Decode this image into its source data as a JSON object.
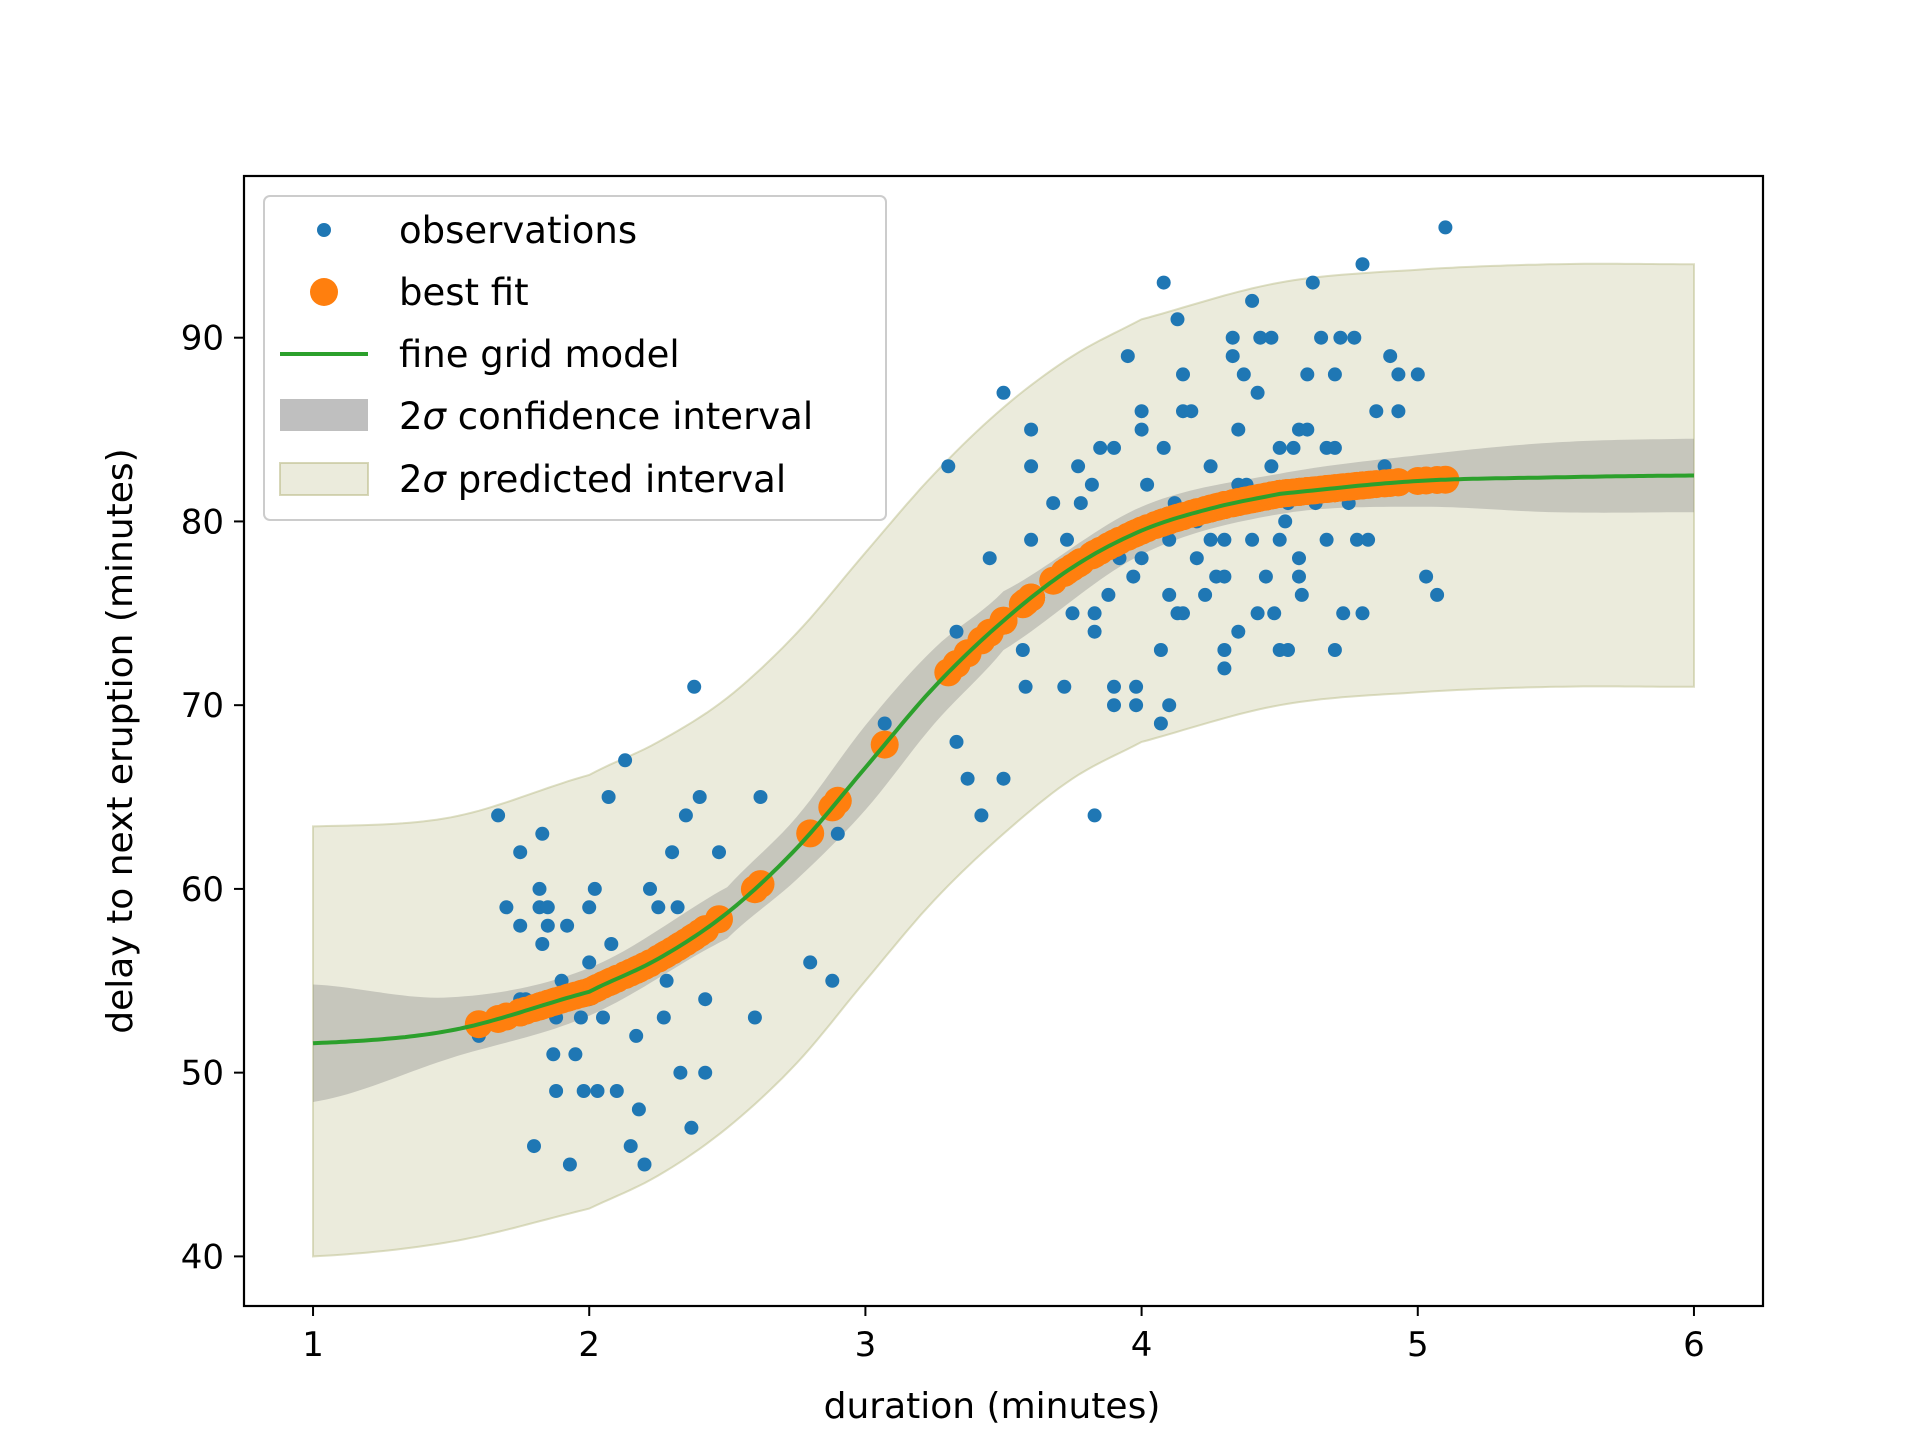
{
  "chart_data": {
    "type": "scatter",
    "title": "",
    "xlabel": "duration (minutes)",
    "ylabel": "delay to next eruption (minutes)",
    "xlim": [
      0.75,
      6.25
    ],
    "ylim": [
      37.3,
      98.8
    ],
    "xticks": [
      1,
      2,
      3,
      4,
      5,
      6
    ],
    "xtick_labels": [
      "1",
      "2",
      "3",
      "4",
      "5",
      "6"
    ],
    "yticks": [
      40,
      50,
      60,
      70,
      80,
      90
    ],
    "ytick_labels": [
      "40",
      "50",
      "60",
      "70",
      "80",
      "90"
    ],
    "grid": false,
    "legend_position": "upper-left",
    "colors": {
      "observations": "#1f77b4",
      "best_fit": "#ff7f0e",
      "fine_grid_model": "#2ca02c",
      "confidence_fill": "#808080",
      "predicted_fill": "#bcbd8a"
    },
    "legend": {
      "observations": "observations",
      "best_fit": "best fit",
      "fine_grid_model": "fine grid model",
      "confidence_prefix": "2",
      "confidence_sigma": "σ",
      "confidence_suffix": " confidence interval",
      "predicted_prefix": "2",
      "predicted_sigma": "σ",
      "predicted_suffix": " predicted interval"
    },
    "model": {
      "form": "logistic",
      "x": [
        1.0,
        1.5,
        2.0,
        2.25,
        2.5,
        2.75,
        3.0,
        3.25,
        3.5,
        3.75,
        4.0,
        4.25,
        4.5,
        5.0,
        5.5,
        6.0
      ],
      "y": [
        51.6,
        52.3,
        54.4,
        56.2,
        58.7,
        62.2,
        66.6,
        71.0,
        74.6,
        77.5,
        79.5,
        80.7,
        81.5,
        82.2,
        82.4,
        82.5
      ]
    },
    "confidence_interval": {
      "x": [
        1.0,
        1.5,
        2.0,
        2.5,
        2.75,
        3.0,
        3.25,
        3.5,
        4.0,
        4.5,
        5.0,
        5.5,
        6.0
      ],
      "lower": [
        48.4,
        50.8,
        53.1,
        57.3,
        60.5,
        64.3,
        69.0,
        73.0,
        78.2,
        80.4,
        80.8,
        80.5,
        80.5
      ],
      "upper": [
        54.8,
        54.1,
        55.7,
        60.1,
        63.9,
        68.9,
        73.1,
        76.2,
        80.8,
        82.6,
        83.6,
        84.3,
        84.5
      ]
    },
    "predicted_interval": {
      "x": [
        1.0,
        1.5,
        2.0,
        2.25,
        2.5,
        2.75,
        3.0,
        3.25,
        3.5,
        3.75,
        4.0,
        4.5,
        5.0,
        5.5,
        6.0
      ],
      "lower": [
        40.0,
        40.8,
        42.6,
        44.4,
        47.0,
        50.5,
        55.0,
        59.4,
        63.0,
        66.0,
        68.0,
        70.0,
        70.7,
        71.0,
        71.0
      ],
      "upper": [
        63.4,
        63.9,
        66.2,
        68.0,
        70.4,
        73.9,
        78.3,
        82.6,
        86.2,
        89.0,
        91.0,
        93.0,
        93.7,
        94.0,
        94.0
      ]
    },
    "observations": [
      [
        1.6,
        52
      ],
      [
        1.67,
        64
      ],
      [
        1.7,
        59
      ],
      [
        1.75,
        62
      ],
      [
        1.75,
        58
      ],
      [
        1.75,
        54
      ],
      [
        1.77,
        54
      ],
      [
        1.8,
        46
      ],
      [
        1.82,
        60
      ],
      [
        1.82,
        59
      ],
      [
        1.83,
        63
      ],
      [
        1.83,
        57
      ],
      [
        1.85,
        59
      ],
      [
        1.85,
        58
      ],
      [
        1.87,
        51
      ],
      [
        1.88,
        53
      ],
      [
        1.88,
        49
      ],
      [
        1.9,
        55
      ],
      [
        1.92,
        58
      ],
      [
        1.93,
        45
      ],
      [
        1.95,
        51
      ],
      [
        1.97,
        53
      ],
      [
        1.98,
        49
      ],
      [
        2.0,
        56
      ],
      [
        2.0,
        59
      ],
      [
        2.0,
        54
      ],
      [
        2.02,
        60
      ],
      [
        2.03,
        49
      ],
      [
        2.05,
        53
      ],
      [
        2.07,
        65
      ],
      [
        2.08,
        57
      ],
      [
        2.1,
        49
      ],
      [
        2.13,
        67
      ],
      [
        2.15,
        46
      ],
      [
        2.17,
        52
      ],
      [
        2.18,
        48
      ],
      [
        2.2,
        45
      ],
      [
        2.22,
        60
      ],
      [
        2.25,
        59
      ],
      [
        2.27,
        53
      ],
      [
        2.28,
        55
      ],
      [
        2.3,
        62
      ],
      [
        2.32,
        59
      ],
      [
        2.33,
        50
      ],
      [
        2.35,
        64
      ],
      [
        2.37,
        47
      ],
      [
        2.38,
        71
      ],
      [
        2.4,
        65
      ],
      [
        2.42,
        54
      ],
      [
        2.42,
        50
      ],
      [
        2.47,
        62
      ],
      [
        2.6,
        53
      ],
      [
        2.62,
        65
      ],
      [
        2.8,
        56
      ],
      [
        2.88,
        55
      ],
      [
        2.9,
        63
      ],
      [
        3.07,
        69
      ],
      [
        3.3,
        83
      ],
      [
        3.33,
        74
      ],
      [
        3.33,
        68
      ],
      [
        3.37,
        66
      ],
      [
        3.42,
        64
      ],
      [
        3.45,
        78
      ],
      [
        3.5,
        87
      ],
      [
        3.5,
        66
      ],
      [
        3.57,
        73
      ],
      [
        3.58,
        71
      ],
      [
        3.6,
        85
      ],
      [
        3.6,
        83
      ],
      [
        3.6,
        79
      ],
      [
        3.68,
        81
      ],
      [
        3.72,
        71
      ],
      [
        3.73,
        79
      ],
      [
        3.75,
        75
      ],
      [
        3.77,
        83
      ],
      [
        3.78,
        81
      ],
      [
        3.82,
        82
      ],
      [
        3.83,
        75
      ],
      [
        3.83,
        74
      ],
      [
        3.83,
        64
      ],
      [
        3.85,
        84
      ],
      [
        3.88,
        76
      ],
      [
        3.9,
        84
      ],
      [
        3.9,
        71
      ],
      [
        3.9,
        70
      ],
      [
        3.92,
        78
      ],
      [
        3.95,
        89
      ],
      [
        3.97,
        77
      ],
      [
        3.98,
        71
      ],
      [
        3.98,
        70
      ],
      [
        4.0,
        86
      ],
      [
        4.0,
        85
      ],
      [
        4.0,
        78
      ],
      [
        4.02,
        82
      ],
      [
        4.05,
        80
      ],
      [
        4.07,
        73
      ],
      [
        4.07,
        69
      ],
      [
        4.08,
        93
      ],
      [
        4.08,
        84
      ],
      [
        4.1,
        79
      ],
      [
        4.1,
        76
      ],
      [
        4.1,
        70
      ],
      [
        4.12,
        81
      ],
      [
        4.13,
        91
      ],
      [
        4.13,
        75
      ],
      [
        4.15,
        88
      ],
      [
        4.15,
        86
      ],
      [
        4.15,
        75
      ],
      [
        4.18,
        86
      ],
      [
        4.2,
        80
      ],
      [
        4.2,
        78
      ],
      [
        4.23,
        76
      ],
      [
        4.25,
        83
      ],
      [
        4.25,
        79
      ],
      [
        4.27,
        77
      ],
      [
        4.28,
        81
      ],
      [
        4.3,
        79
      ],
      [
        4.3,
        77
      ],
      [
        4.3,
        73
      ],
      [
        4.3,
        72
      ],
      [
        4.33,
        90
      ],
      [
        4.33,
        89
      ],
      [
        4.35,
        85
      ],
      [
        4.35,
        82
      ],
      [
        4.35,
        74
      ],
      [
        4.37,
        88
      ],
      [
        4.38,
        82
      ],
      [
        4.4,
        92
      ],
      [
        4.4,
        79
      ],
      [
        4.42,
        87
      ],
      [
        4.42,
        75
      ],
      [
        4.43,
        90
      ],
      [
        4.45,
        81
      ],
      [
        4.45,
        77
      ],
      [
        4.47,
        90
      ],
      [
        4.47,
        83
      ],
      [
        4.48,
        75
      ],
      [
        4.5,
        84
      ],
      [
        4.5,
        79
      ],
      [
        4.5,
        73
      ],
      [
        4.52,
        80
      ],
      [
        4.53,
        81
      ],
      [
        4.53,
        73
      ],
      [
        4.55,
        84
      ],
      [
        4.57,
        85
      ],
      [
        4.57,
        78
      ],
      [
        4.57,
        77
      ],
      [
        4.58,
        76
      ],
      [
        4.6,
        88
      ],
      [
        4.6,
        85
      ],
      [
        4.62,
        93
      ],
      [
        4.63,
        81
      ],
      [
        4.65,
        90
      ],
      [
        4.67,
        84
      ],
      [
        4.67,
        79
      ],
      [
        4.68,
        82
      ],
      [
        4.7,
        88
      ],
      [
        4.7,
        84
      ],
      [
        4.7,
        73
      ],
      [
        4.72,
        90
      ],
      [
        4.73,
        75
      ],
      [
        4.75,
        81
      ],
      [
        4.77,
        90
      ],
      [
        4.78,
        79
      ],
      [
        4.8,
        94
      ],
      [
        4.8,
        75
      ],
      [
        4.82,
        79
      ],
      [
        4.83,
        82
      ],
      [
        4.85,
        86
      ],
      [
        4.88,
        83
      ],
      [
        4.9,
        89
      ],
      [
        4.93,
        88
      ],
      [
        4.93,
        86
      ],
      [
        5.0,
        88
      ],
      [
        5.03,
        77
      ],
      [
        5.07,
        76
      ],
      [
        5.1,
        96
      ]
    ]
  }
}
